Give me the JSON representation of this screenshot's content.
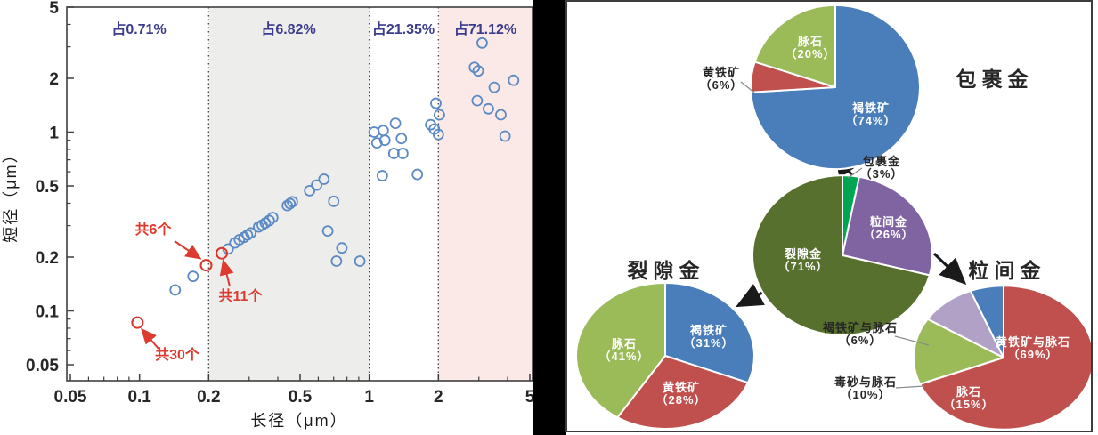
{
  "chart_data": [
    {
      "id": "grain-size-scatter",
      "type": "scatter",
      "xlabel": "长径（μm）",
      "ylabel": "短径（μm）",
      "xscale": "log",
      "yscale": "log",
      "xlim": [
        0.05,
        5
      ],
      "ylim": [
        0.05,
        5
      ],
      "x_ticks": [
        "0.05",
        "0.1",
        "0.2",
        "0.5",
        "1",
        "2",
        "5"
      ],
      "y_ticks": [
        "5",
        "2",
        "1",
        "0.5",
        "0.2",
        "0.1",
        "0.05"
      ],
      "grid": false,
      "zones": [
        {
          "label": "占0.71%",
          "x_range": [
            0.05,
            0.2
          ],
          "fill": "#ffffff"
        },
        {
          "label": "占6.82%",
          "x_range": [
            0.2,
            1
          ],
          "fill": "#ededec"
        },
        {
          "label": "占21.35%",
          "x_range": [
            1,
            2
          ],
          "fill": "#ffffff"
        },
        {
          "label": "占71.12%",
          "x_range": [
            2,
            5
          ],
          "fill": "#fbe9e8"
        }
      ],
      "zone_label_color": "#3b3b8e",
      "series": [
        {
          "name": "gold-grains-blue-open-circles",
          "marker": "open-circle",
          "color": "#5b8ac5",
          "points": [
            [
              0.143,
              0.131
            ],
            [
              0.171,
              0.156
            ],
            [
              0.243,
              0.222
            ],
            [
              0.26,
              0.24
            ],
            [
              0.272,
              0.25
            ],
            [
              0.285,
              0.258
            ],
            [
              0.295,
              0.266
            ],
            [
              0.305,
              0.273
            ],
            [
              0.33,
              0.295
            ],
            [
              0.342,
              0.302
            ],
            [
              0.353,
              0.31
            ],
            [
              0.367,
              0.32
            ],
            [
              0.38,
              0.333
            ],
            [
              0.44,
              0.388
            ],
            [
              0.452,
              0.398
            ],
            [
              0.463,
              0.408
            ],
            [
              0.55,
              0.47
            ],
            [
              0.59,
              0.505
            ],
            [
              0.635,
              0.545
            ],
            [
              0.7,
              0.41
            ],
            [
              0.66,
              0.28
            ],
            [
              0.76,
              0.225
            ],
            [
              0.72,
              0.19
            ],
            [
              0.91,
              0.19
            ],
            [
              1.05,
              1.0
            ],
            [
              1.15,
              1.02
            ],
            [
              1.08,
              0.87
            ],
            [
              1.17,
              0.9
            ],
            [
              1.3,
              1.12
            ],
            [
              1.38,
              0.92
            ],
            [
              1.28,
              0.76
            ],
            [
              1.4,
              0.76
            ],
            [
              1.14,
              0.57
            ],
            [
              1.62,
              0.58
            ],
            [
              1.85,
              1.1
            ],
            [
              1.92,
              1.04
            ],
            [
              1.95,
              1.45
            ],
            [
              2.02,
              1.25
            ],
            [
              2.0,
              0.97
            ],
            [
              3.1,
              3.15
            ],
            [
              2.87,
              2.3
            ],
            [
              2.98,
              2.2
            ],
            [
              3.5,
              1.78
            ],
            [
              4.25,
              1.95
            ],
            [
              2.95,
              1.5
            ],
            [
              3.3,
              1.35
            ],
            [
              3.74,
              1.25
            ],
            [
              3.9,
              0.95
            ]
          ]
        },
        {
          "name": "overlapping-cluster-red-circles",
          "marker": "open-circle",
          "color": "#d8352b",
          "points": [
            [
              0.195,
              0.18
            ],
            [
              0.228,
              0.21
            ],
            [
              0.098,
              0.086
            ]
          ]
        }
      ],
      "annotations": [
        {
          "text": "共6个",
          "target_point": [
            0.195,
            0.18
          ]
        },
        {
          "text": "共11个",
          "target_point": [
            0.228,
            0.21
          ]
        },
        {
          "text": "共30个",
          "target_point": [
            0.098,
            0.086
          ]
        }
      ]
    },
    {
      "id": "pie-encapsulated-gold",
      "type": "pie",
      "title": "包裹金",
      "slices": [
        {
          "label": "褐铁矿",
          "value": 74,
          "color": "#4a7ebb"
        },
        {
          "label": "黄铁矿",
          "value": 6,
          "color": "#c0504d"
        },
        {
          "label": "脉石",
          "value": 20,
          "color": "#9bbb59"
        }
      ]
    },
    {
      "id": "pie-gold-occurrence-overview",
      "type": "pie",
      "title": "",
      "slices": [
        {
          "label": "包裹金",
          "value": 3,
          "color": "#00a551"
        },
        {
          "label": "粒间金",
          "value": 26,
          "color": "#8064a2"
        },
        {
          "label": "裂隙金",
          "value": 71,
          "color": "#57702e"
        }
      ]
    },
    {
      "id": "pie-fissure-gold",
      "type": "pie",
      "title": "裂隙金",
      "slices": [
        {
          "label": "褐铁矿",
          "value": 31,
          "color": "#4a7ebb"
        },
        {
          "label": "黄铁矿",
          "value": 28,
          "color": "#c0504d"
        },
        {
          "label": "脉石",
          "value": 41,
          "color": "#9bbb59"
        }
      ]
    },
    {
      "id": "pie-intergranular-gold",
      "type": "pie",
      "title": "粒间金",
      "slices": [
        {
          "label": "黄铁矿与脉石",
          "value": 69,
          "color": "#c0504d"
        },
        {
          "label": "脉石",
          "value": 15,
          "color": "#9bbb59"
        },
        {
          "label": "毒砂与脉石",
          "value": 10,
          "color": "#b2a1c7"
        },
        {
          "label": "褐铁矿与脉石",
          "value": 6,
          "color": "#4a7ebb"
        }
      ]
    }
  ]
}
